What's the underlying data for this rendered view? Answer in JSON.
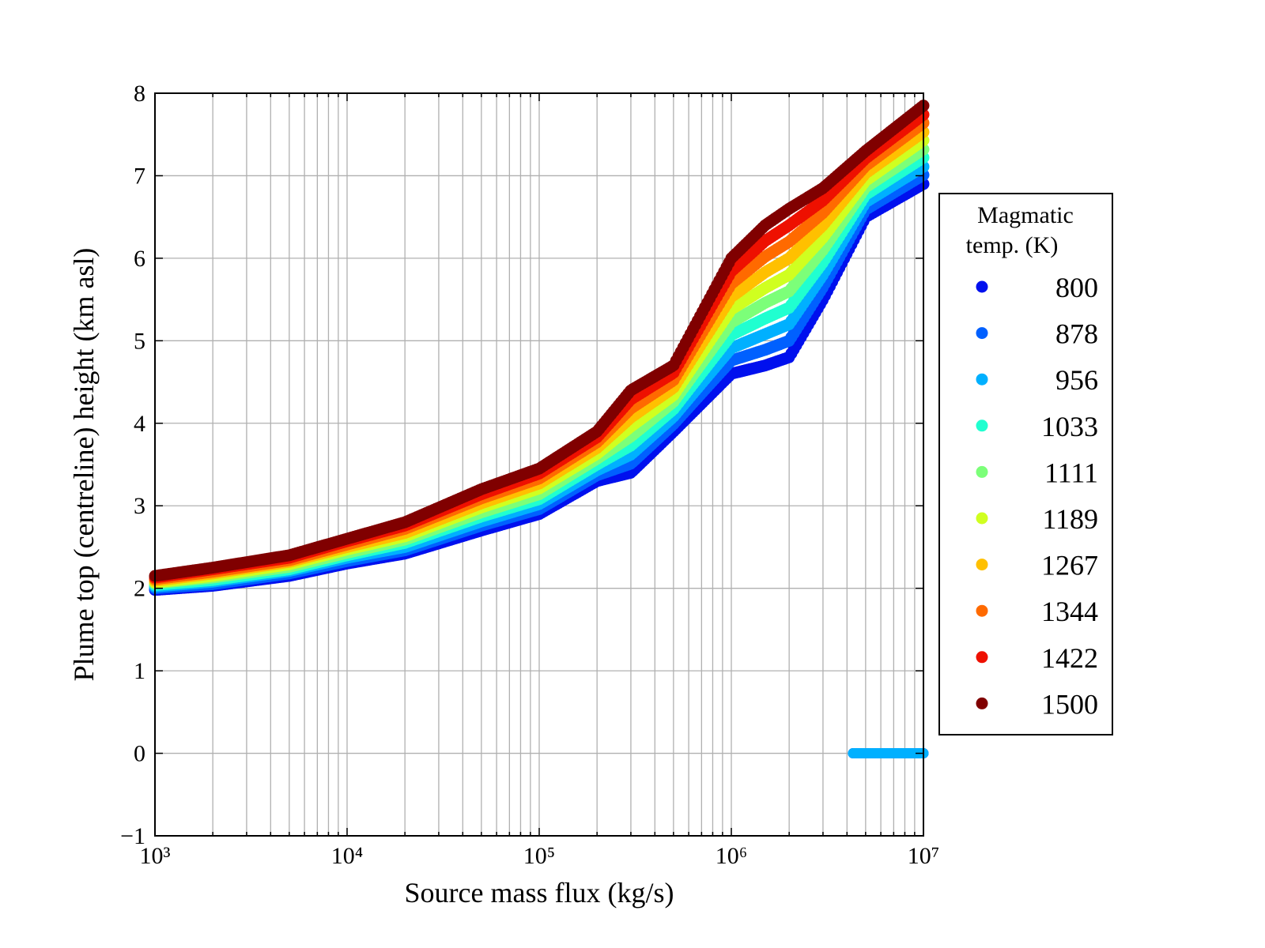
{
  "chart_data": {
    "type": "scatter",
    "title": "",
    "xlabel": "Source mass flux (kg/s)",
    "ylabel": "Plume top (centreline) height (km asl)",
    "xscale": "log",
    "xlim": [
      1000,
      10000000
    ],
    "ylim": [
      -1,
      8
    ],
    "grid": true,
    "xticks": [
      1000,
      10000,
      100000,
      1000000,
      10000000
    ],
    "xtick_labels": [
      "10³",
      "10⁴",
      "10⁵",
      "10⁶",
      "10⁷"
    ],
    "yticks": [
      -1,
      0,
      1,
      2,
      3,
      4,
      5,
      6,
      7,
      8
    ],
    "ytick_labels": [
      "−1",
      "0",
      "1",
      "2",
      "3",
      "4",
      "5",
      "6",
      "7",
      "8"
    ],
    "legend": {
      "title_line1": "Magmatic",
      "title_line2": "temp. (K)",
      "placement": "outside-right"
    },
    "x": [
      1000,
      2000,
      5000,
      10000,
      20000,
      50000,
      100000,
      200000,
      300000,
      500000,
      1000000,
      1500000,
      2000000,
      3000000,
      5000000,
      10000000
    ],
    "series": [
      {
        "name": "800",
        "color": "#0010ee",
        "values": [
          1.98,
          2.03,
          2.15,
          2.3,
          2.42,
          2.7,
          2.9,
          3.3,
          3.4,
          3.9,
          4.6,
          4.7,
          4.8,
          5.5,
          6.5,
          6.9
        ]
      },
      {
        "name": "878",
        "color": "#0060ff",
        "values": [
          2.0,
          2.05,
          2.18,
          2.33,
          2.46,
          2.76,
          2.96,
          3.37,
          3.51,
          3.99,
          4.76,
          4.89,
          5.0,
          5.65,
          6.59,
          7.01
        ]
      },
      {
        "name": "956",
        "color": "#00b0ff",
        "values": [
          2.02,
          2.08,
          2.21,
          2.37,
          2.5,
          2.81,
          3.02,
          3.43,
          3.62,
          4.08,
          4.91,
          5.08,
          5.2,
          5.8,
          6.68,
          7.11
        ]
      },
      {
        "name": "1033",
        "color": "#20ffd0",
        "values": [
          2.04,
          2.1,
          2.23,
          2.4,
          2.55,
          2.87,
          3.08,
          3.5,
          3.73,
          4.17,
          5.07,
          5.27,
          5.4,
          5.95,
          6.77,
          7.22
        ]
      },
      {
        "name": "1111",
        "color": "#7cff79",
        "values": [
          2.06,
          2.13,
          2.26,
          2.43,
          2.59,
          2.92,
          3.14,
          3.57,
          3.84,
          4.26,
          5.22,
          5.46,
          5.6,
          6.1,
          6.86,
          7.32
        ]
      },
      {
        "name": "1189",
        "color": "#d0ff20",
        "values": [
          2.07,
          2.15,
          2.29,
          2.47,
          2.63,
          2.98,
          3.21,
          3.63,
          3.96,
          4.34,
          5.38,
          5.64,
          5.8,
          6.25,
          6.94,
          7.43
        ]
      },
      {
        "name": "1267",
        "color": "#ffc000",
        "values": [
          2.09,
          2.18,
          2.32,
          2.5,
          2.67,
          3.03,
          3.27,
          3.7,
          4.07,
          4.43,
          5.53,
          5.83,
          6.0,
          6.4,
          7.03,
          7.53
        ]
      },
      {
        "name": "1344",
        "color": "#ff6a00",
        "values": [
          2.11,
          2.2,
          2.34,
          2.53,
          2.72,
          3.09,
          3.33,
          3.77,
          4.18,
          4.52,
          5.69,
          6.02,
          6.2,
          6.55,
          7.12,
          7.64
        ]
      },
      {
        "name": "1422",
        "color": "#ee1000",
        "values": [
          2.13,
          2.23,
          2.37,
          2.57,
          2.76,
          3.14,
          3.39,
          3.83,
          4.29,
          4.61,
          5.84,
          6.21,
          6.4,
          6.7,
          7.21,
          7.74
        ]
      },
      {
        "name": "1500",
        "color": "#800000",
        "values": [
          2.15,
          2.25,
          2.4,
          2.6,
          2.8,
          3.2,
          3.45,
          3.9,
          4.4,
          4.7,
          6.0,
          6.4,
          6.6,
          6.85,
          7.3,
          7.85
        ]
      }
    ],
    "zero_branch": {
      "x_range": [
        4300000,
        10000000
      ],
      "y": 0,
      "series": [
        "800",
        "878",
        "956"
      ]
    }
  }
}
